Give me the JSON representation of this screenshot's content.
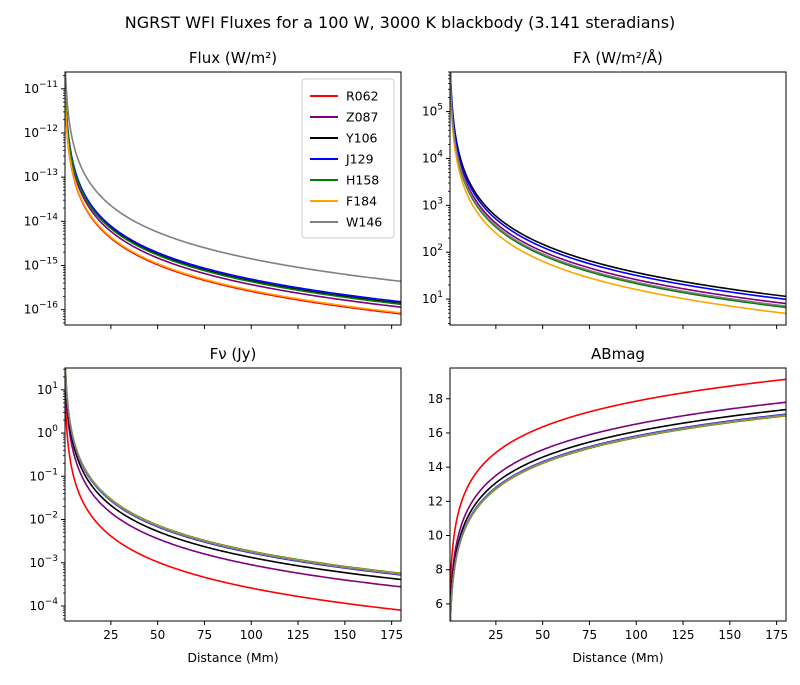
{
  "figure": {
    "suptitle": "NGRST WFI Fluxes for a 100 W, 3000 K blackbody (3.141 steradians)"
  },
  "chart_data": [
    {
      "id": "flux",
      "type": "line",
      "title": "Flux (W/m²)",
      "xlabel": "",
      "ylabel": "",
      "xscale": "linear",
      "yscale": "log",
      "xlim": [
        0.5,
        180
      ],
      "ylim": [
        4.5e-17,
        2.4e-11
      ],
      "x_ticks": [
        25,
        50,
        75,
        100,
        125,
        150,
        175
      ],
      "x_tick_labels": [],
      "y_ticks": [
        1e-16,
        1e-15,
        1e-14,
        1e-13,
        1e-12,
        1e-11
      ],
      "y_tick_labels": [
        {
          "base": "10",
          "exp": "−16"
        },
        {
          "base": "10",
          "exp": "−15"
        },
        {
          "base": "10",
          "exp": "−14"
        },
        {
          "base": "10",
          "exp": "−13"
        },
        {
          "base": "10",
          "exp": "−12"
        },
        {
          "base": "10",
          "exp": "−11"
        }
      ],
      "legend": "top-right",
      "model": "y = k / x^2",
      "series": [
        {
          "name": "R062",
          "color": "#ff0000",
          "k_at_1Mm": 2.6e-12
        },
        {
          "name": "Z087",
          "color": "#800080",
          "k_at_1Mm": 3.7e-12
        },
        {
          "name": "Y106",
          "color": "#000000",
          "k_at_1Mm": 4.5e-12
        },
        {
          "name": "J129",
          "color": "#0000ff",
          "k_at_1Mm": 4.9e-12
        },
        {
          "name": "H158",
          "color": "#008000",
          "k_at_1Mm": 4.3e-12
        },
        {
          "name": "F184",
          "color": "#ffa500",
          "k_at_1Mm": 2.75e-12
        },
        {
          "name": "W146",
          "color": "#808080",
          "k_at_1Mm": 1.42e-11
        }
      ]
    },
    {
      "id": "flambda",
      "type": "line",
      "title": "Fλ (W/m²/Å)",
      "xlabel": "",
      "ylabel": "",
      "xscale": "linear",
      "yscale": "log",
      "xlim": [
        0.5,
        180
      ],
      "ylim": [
        2.8,
        700000.0
      ],
      "x_ticks": [
        25,
        50,
        75,
        100,
        125,
        150,
        175
      ],
      "x_tick_labels": [],
      "y_ticks": [
        10,
        100,
        1000,
        10000,
        100000
      ],
      "y_tick_labels": [
        {
          "base": "10",
          "exp": "1"
        },
        {
          "base": "10",
          "exp": "2"
        },
        {
          "base": "10",
          "exp": "3"
        },
        {
          "base": "10",
          "exp": "4"
        },
        {
          "base": "10",
          "exp": "5"
        }
      ],
      "legend": "none",
      "model": "y = k / x^2",
      "series": [
        {
          "name": "R062",
          "color": "#ff0000",
          "k_at_1Mm": 220000
        },
        {
          "name": "Z087",
          "color": "#800080",
          "k_at_1Mm": 260000
        },
        {
          "name": "Y106",
          "color": "#000000",
          "k_at_1Mm": 370000
        },
        {
          "name": "J129",
          "color": "#0000ff",
          "k_at_1Mm": 320000
        },
        {
          "name": "H158",
          "color": "#008000",
          "k_at_1Mm": 215000
        },
        {
          "name": "F184",
          "color": "#ffa500",
          "k_at_1Mm": 160000
        },
        {
          "name": "W146",
          "color": "#808080",
          "k_at_1Mm": 230000
        }
      ]
    },
    {
      "id": "fnu",
      "type": "line",
      "title": "Fν (Jy)",
      "xlabel": "Distance (Mm)",
      "ylabel": "",
      "xscale": "linear",
      "yscale": "log",
      "xlim": [
        0.5,
        180
      ],
      "ylim": [
        4.5e-05,
        32
      ],
      "x_ticks": [
        25,
        50,
        75,
        100,
        125,
        150,
        175
      ],
      "x_tick_labels": [
        "25",
        "50",
        "75",
        "100",
        "125",
        "150",
        "175"
      ],
      "y_ticks": [
        0.0001,
        0.001,
        0.01,
        0.1,
        1,
        10
      ],
      "y_tick_labels": [
        {
          "base": "10",
          "exp": "−4"
        },
        {
          "base": "10",
          "exp": "−3"
        },
        {
          "base": "10",
          "exp": "−2"
        },
        {
          "base": "10",
          "exp": "−1"
        },
        {
          "base": "10",
          "exp": "0"
        },
        {
          "base": "10",
          "exp": "1"
        }
      ],
      "legend": "none",
      "model": "y = k / x^2",
      "series": [
        {
          "name": "R062",
          "color": "#ff0000",
          "k_at_1Mm": 2.6
        },
        {
          "name": "Z087",
          "color": "#800080",
          "k_at_1Mm": 9.0
        },
        {
          "name": "Y106",
          "color": "#000000",
          "k_at_1Mm": 13.3
        },
        {
          "name": "J129",
          "color": "#0000ff",
          "k_at_1Mm": 17.0
        },
        {
          "name": "H158",
          "color": "#008000",
          "k_at_1Mm": 18.5
        },
        {
          "name": "F184",
          "color": "#ffa500",
          "k_at_1Mm": 18.0
        },
        {
          "name": "W146",
          "color": "#808080",
          "k_at_1Mm": 17.5
        }
      ]
    },
    {
      "id": "abmag",
      "type": "line",
      "title": "ABmag",
      "xlabel": "Distance (Mm)",
      "ylabel": "",
      "xscale": "linear",
      "yscale": "linear",
      "xlim": [
        0.5,
        180
      ],
      "ylim": [
        5,
        19.8
      ],
      "x_ticks": [
        25,
        50,
        75,
        100,
        125,
        150,
        175
      ],
      "x_tick_labels": [
        "25",
        "50",
        "75",
        "100",
        "125",
        "150",
        "175"
      ],
      "y_ticks": [
        6,
        8,
        10,
        12,
        14,
        16,
        18
      ],
      "y_tick_labels": [
        "6",
        "8",
        "10",
        "12",
        "14",
        "16",
        "18"
      ],
      "legend": "none",
      "model": "y = m0 + 5*log10(x)",
      "series": [
        {
          "name": "R062",
          "color": "#ff0000",
          "m0_at_1Mm": 7.86
        },
        {
          "name": "Z087",
          "color": "#800080",
          "m0_at_1Mm": 6.52
        },
        {
          "name": "Y106",
          "color": "#000000",
          "m0_at_1Mm": 6.09
        },
        {
          "name": "J129",
          "color": "#0000ff",
          "m0_at_1Mm": 5.82
        },
        {
          "name": "H158",
          "color": "#008000",
          "m0_at_1Mm": 5.73
        },
        {
          "name": "F184",
          "color": "#ffa500",
          "m0_at_1Mm": 5.76
        },
        {
          "name": "W146",
          "color": "#808080",
          "m0_at_1Mm": 5.79
        }
      ]
    }
  ]
}
